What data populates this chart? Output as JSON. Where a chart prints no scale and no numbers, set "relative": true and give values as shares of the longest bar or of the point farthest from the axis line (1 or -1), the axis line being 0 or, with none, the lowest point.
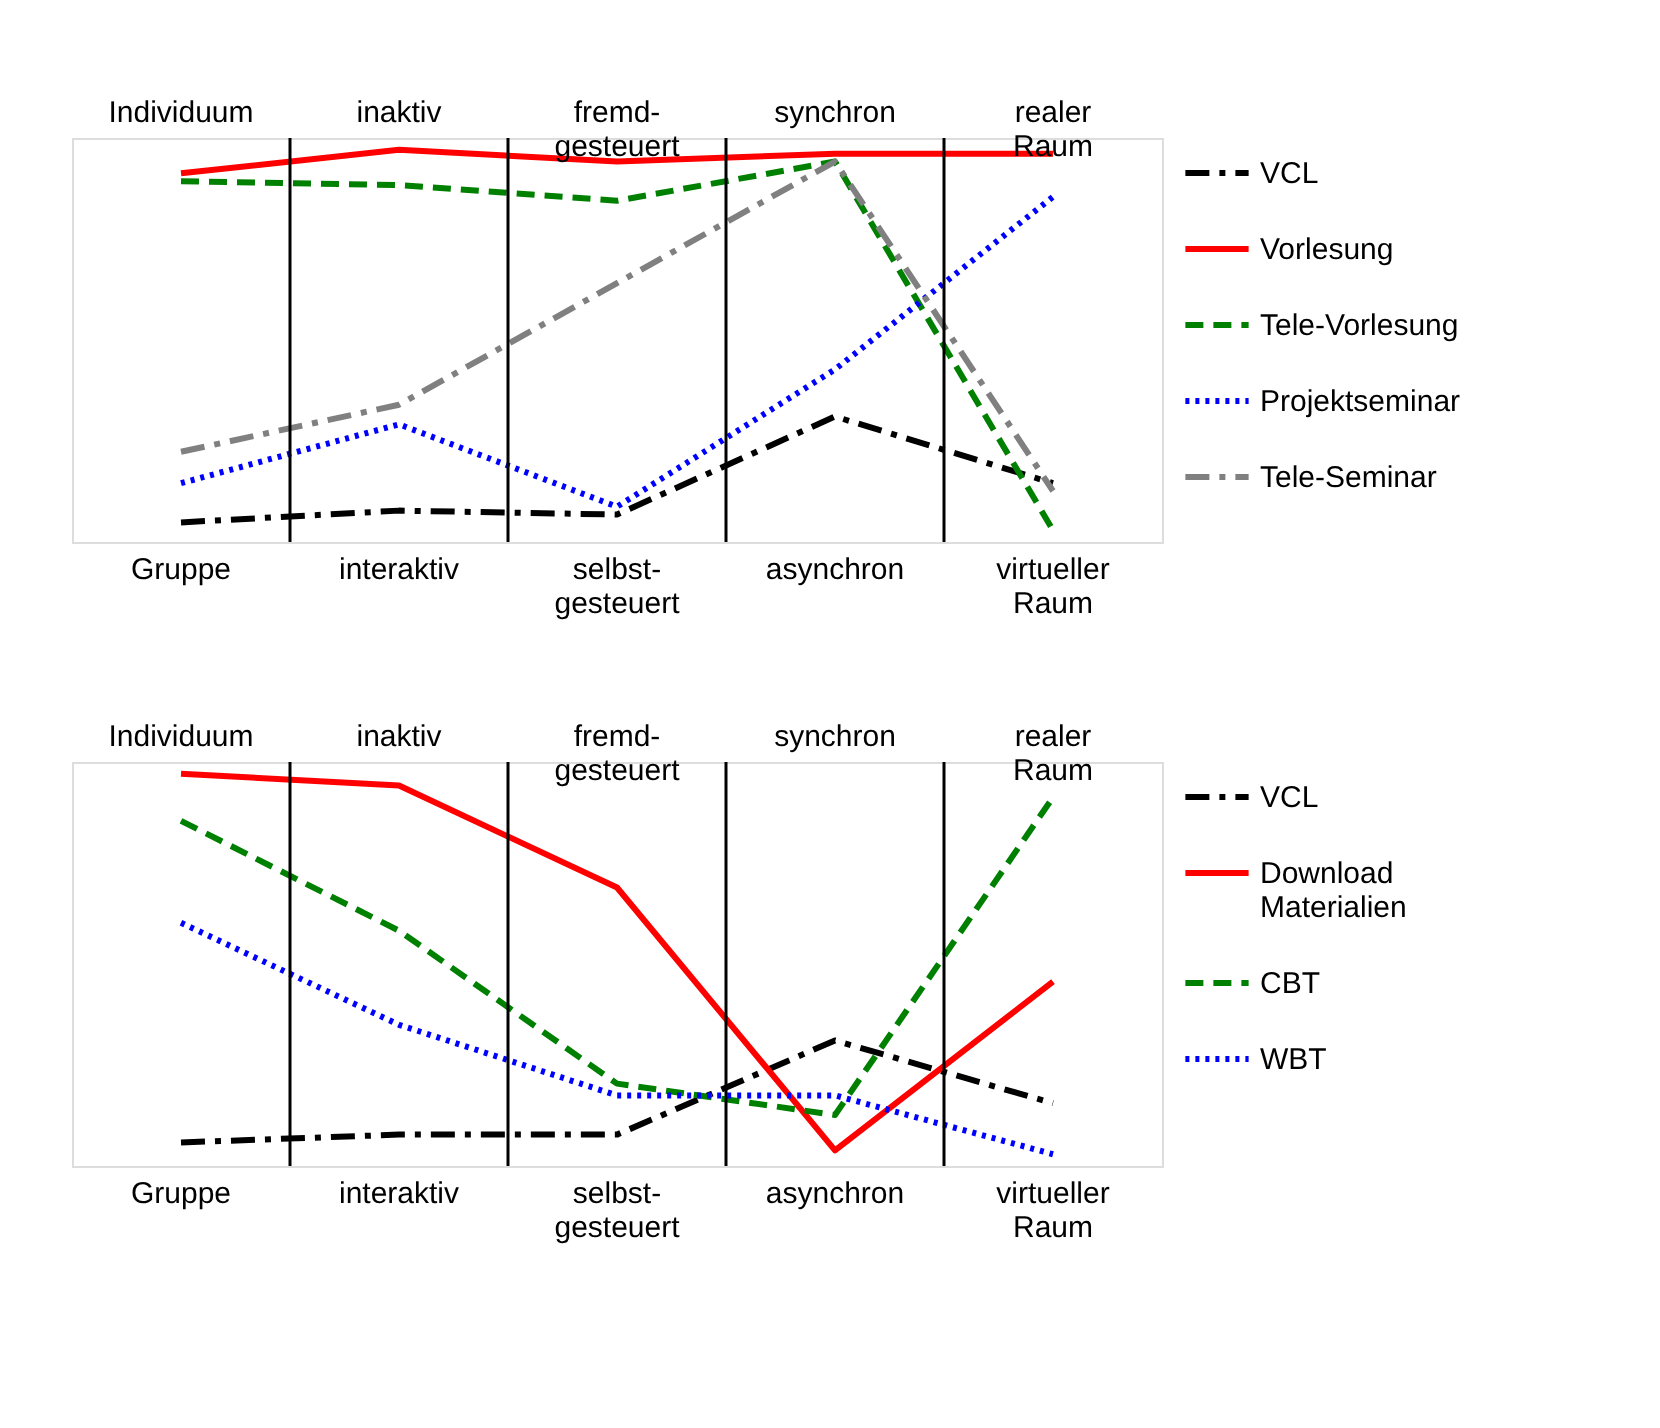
{
  "chart_data": [
    {
      "type": "line",
      "relative": true,
      "grid": false,
      "legend": "right",
      "marker": "none",
      "categories": [
        "Gruppe",
        "interaktiv",
        "selbst-\ngesteuert",
        "asynchron",
        "virtueller\nRaum"
      ],
      "annotations": [
        "Individuum",
        "inaktiv",
        "fremd-\ngesteuert",
        "synchron",
        "realer\nRaum"
      ],
      "series": [
        {
          "name": "VCL",
          "color": "#000000",
          "line_style": "dashdot",
          "values": [
            0.05,
            0.08,
            0.07,
            0.32,
            0.15
          ]
        },
        {
          "name": "Vorlesung",
          "color": "#ff0000",
          "line_style": "solid",
          "values": [
            0.94,
            1,
            0.97,
            0.99,
            0.99
          ]
        },
        {
          "name": "Tele-Vorlesung",
          "color": "#008000",
          "line_style": "dashed",
          "values": [
            0.92,
            0.91,
            0.87,
            0.97,
            0.03
          ]
        },
        {
          "name": "Projektseminar",
          "color": "#0000ff",
          "line_style": "dotted",
          "values": [
            0.15,
            0.3,
            0.09,
            0.44,
            0.88
          ]
        },
        {
          "name": "Tele-Seminar",
          "color": "#808080",
          "line_style": "dashdot",
          "values": [
            0.23,
            0.35,
            0.66,
            0.97,
            0.13
          ]
        }
      ]
    },
    {
      "type": "line",
      "relative": true,
      "grid": false,
      "legend": "right",
      "marker": "none",
      "categories": [
        "Gruppe",
        "interaktiv",
        "selbst-\ngesteuert",
        "asynchron",
        "virtueller\nRaum"
      ],
      "annotations": [
        "Individuum",
        "inaktiv",
        "fremd-\ngesteuert",
        "synchron",
        "realer\nRaum"
      ],
      "series": [
        {
          "name": "VCL",
          "color": "#000000",
          "line_style": "dashdot",
          "values": [
            0.06,
            0.08,
            0.08,
            0.32,
            0.16
          ]
        },
        {
          "name": "Download\nMaterialien",
          "color": "#ff0000",
          "line_style": "solid",
          "values": [
            1,
            0.97,
            0.71,
            0.04,
            0.47
          ]
        },
        {
          "name": "CBT",
          "color": "#008000",
          "line_style": "dashed",
          "values": [
            0.88,
            0.6,
            0.21,
            0.13,
            0.94
          ]
        },
        {
          "name": "WBT",
          "color": "#0000ff",
          "line_style": "dotted",
          "values": [
            0.62,
            0.36,
            0.18,
            0.18,
            0.03
          ]
        }
      ]
    }
  ]
}
